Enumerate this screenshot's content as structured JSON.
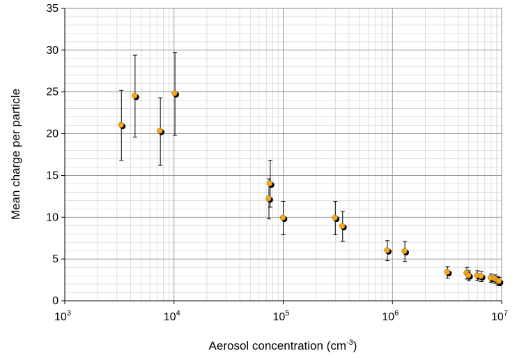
{
  "chart_data": {
    "type": "scatter",
    "xlabel": "Aerosol concentration (cm",
    "xlabel_sup": "-3",
    "xlabel_end": ")",
    "ylabel": "Mean charge per particle",
    "x_scale": "log",
    "xlim": [
      1000,
      10000000
    ],
    "ylim": [
      0,
      35
    ],
    "x_ticks": [
      {
        "value": 1000,
        "base": "10",
        "exp": "3"
      },
      {
        "value": 10000,
        "base": "10",
        "exp": "4"
      },
      {
        "value": 100000,
        "base": "10",
        "exp": "5"
      },
      {
        "value": 1000000,
        "base": "10",
        "exp": "6"
      },
      {
        "value": 10000000,
        "base": "10",
        "exp": "7"
      }
    ],
    "y_ticks": [
      0,
      5,
      10,
      15,
      20,
      25,
      30,
      35
    ],
    "grid": true,
    "marker_color": "#f5a81c",
    "series": [
      {
        "points": [
          {
            "x": 3300,
            "y": 21.0,
            "yerr": [
              16.8,
              25.2
            ]
          },
          {
            "x": 4400,
            "y": 24.5,
            "yerr": [
              19.6,
              29.4
            ]
          },
          {
            "x": 7500,
            "y": 20.3,
            "yerr": [
              16.2,
              24.3
            ]
          },
          {
            "x": 10200,
            "y": 24.8,
            "yerr": [
              19.8,
              29.7
            ]
          },
          {
            "x": 74000,
            "y": 12.2,
            "yerr": [
              9.8,
              14.6
            ]
          },
          {
            "x": 76000,
            "y": 14.0,
            "yerr": [
              11.2,
              16.8
            ]
          },
          {
            "x": 100000,
            "y": 9.9,
            "yerr": [
              7.9,
              11.9
            ]
          },
          {
            "x": 300000,
            "y": 9.9,
            "yerr": [
              7.9,
              11.9
            ]
          },
          {
            "x": 350000,
            "y": 8.9,
            "yerr": [
              7.1,
              10.7
            ]
          },
          {
            "x": 900000,
            "y": 6.0,
            "yerr": [
              4.8,
              7.2
            ]
          },
          {
            "x": 1300000,
            "y": 5.9,
            "yerr": [
              4.7,
              7.1
            ]
          },
          {
            "x": 3200000,
            "y": 3.4,
            "yerr": [
              2.7,
              4.1
            ]
          },
          {
            "x": 4800000,
            "y": 3.3,
            "yerr": [
              2.6,
              4.0
            ]
          },
          {
            "x": 5000000,
            "y": 3.0,
            "yerr": [
              2.4,
              3.6
            ]
          },
          {
            "x": 6000000,
            "y": 3.0,
            "yerr": [
              2.4,
              3.6
            ]
          },
          {
            "x": 6500000,
            "y": 2.9,
            "yerr": [
              2.3,
              3.5
            ]
          },
          {
            "x": 8000000,
            "y": 2.7,
            "yerr": [
              2.2,
              3.2
            ]
          },
          {
            "x": 8700000,
            "y": 2.6,
            "yerr": [
              2.1,
              3.1
            ]
          },
          {
            "x": 9200000,
            "y": 2.4,
            "yerr": [
              1.9,
              2.9
            ]
          },
          {
            "x": 9500000,
            "y": 2.3,
            "yerr": [
              1.8,
              2.8
            ]
          }
        ]
      }
    ]
  }
}
